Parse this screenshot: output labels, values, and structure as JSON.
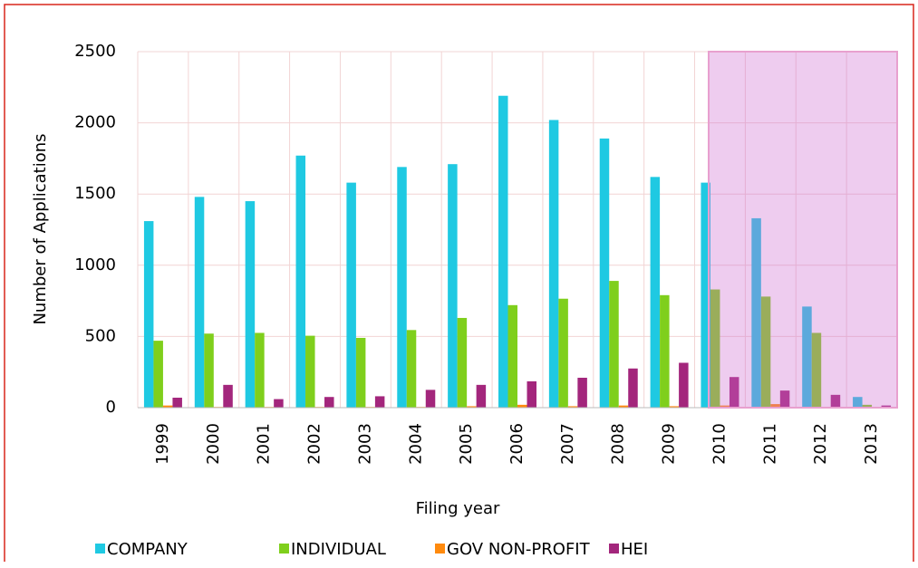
{
  "chart_data": {
    "type": "bar",
    "x_label": "Filing year",
    "y_label": "Number of Applications",
    "categories": [
      "1999",
      "2000",
      "2001",
      "2002",
      "2003",
      "2004",
      "2005",
      "2006",
      "2007",
      "2008",
      "2009",
      "2010",
      "2011",
      "2012",
      "2013"
    ],
    "series": [
      {
        "name": "COMPANY",
        "color": "#1fc9e2",
        "values": [
          1310,
          1480,
          1450,
          1770,
          1580,
          1690,
          1710,
          2190,
          2020,
          1890,
          1620,
          1580,
          1330,
          710,
          75
        ]
      },
      {
        "name": "INDIVIDUAL",
        "color": "#7fcf1c",
        "values": [
          470,
          520,
          525,
          505,
          490,
          545,
          630,
          720,
          765,
          890,
          790,
          830,
          780,
          525,
          20
        ]
      },
      {
        "name": "GOV NON-PROFIT",
        "color": "#ff8a0d",
        "values": [
          15,
          5,
          5,
          5,
          5,
          5,
          10,
          20,
          10,
          15,
          10,
          15,
          25,
          5,
          5
        ]
      },
      {
        "name": "HEI",
        "color": "#a3267c",
        "values": [
          70,
          160,
          60,
          75,
          80,
          125,
          160,
          185,
          210,
          275,
          315,
          215,
          120,
          90,
          15
        ]
      }
    ],
    "ylim": [
      0,
      2500
    ],
    "yticks": [
      0,
      500,
      1000,
      1500,
      2000,
      2500
    ],
    "grid": true
  }
}
